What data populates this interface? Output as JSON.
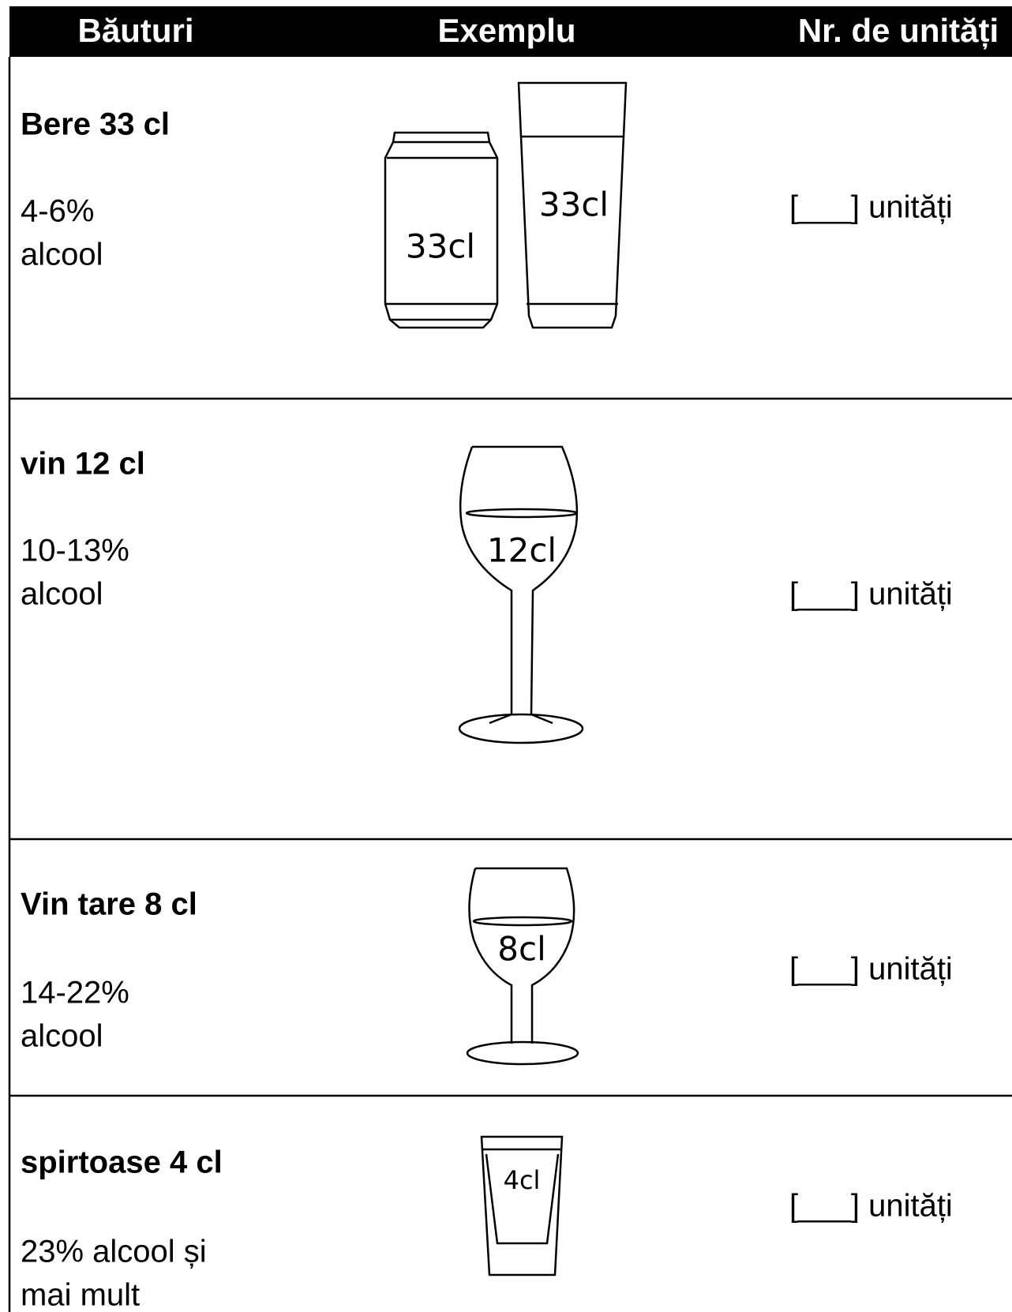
{
  "header": {
    "columns": [
      "Băuturi",
      "Exemplu",
      "Nr. de unități"
    ]
  },
  "table": {
    "rows": [
      {
        "name": "Bere 33 cl",
        "alcohol": [
          "4-6%",
          "alcool"
        ],
        "example_labels": [
          "33cl",
          "33cl"
        ],
        "units": "[___] unități"
      },
      {
        "name": "vin 12 cl",
        "alcohol": [
          "10-13%",
          "alcool"
        ],
        "example_labels": [
          "12cl"
        ],
        "units": "[___] unități"
      },
      {
        "name": "Vin tare 8 cl",
        "alcohol": [
          "14-22%",
          "alcool"
        ],
        "example_labels": [
          "8cl"
        ],
        "units": "[___] unități"
      },
      {
        "name": "spirtoase 4 cl",
        "alcohol": [
          "23% alcool și",
          "mai mult"
        ],
        "example_labels": [
          "4cl"
        ],
        "units": "[___] unități"
      }
    ]
  }
}
